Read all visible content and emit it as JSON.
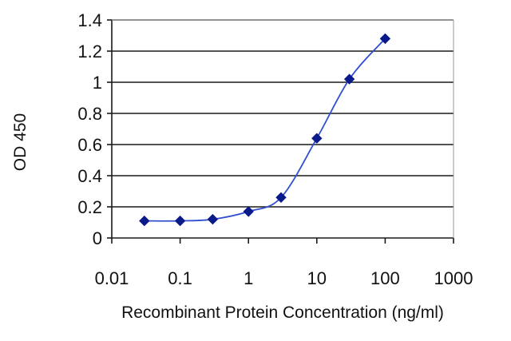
{
  "chart_data": {
    "type": "scatter",
    "title": "",
    "xlabel": "Recombinant Protein Concentration (ng/ml)",
    "ylabel": "OD 450",
    "x_scale": "log",
    "xlim": [
      0.01,
      1000
    ],
    "ylim": [
      0,
      1.4
    ],
    "x_tick_labels": [
      "0.01",
      "0.1",
      "1",
      "10",
      "100",
      "1000"
    ],
    "x_tick_values": [
      0.01,
      0.1,
      1,
      10,
      100,
      1000
    ],
    "y_tick_labels": [
      "0",
      "0.2",
      "0.4",
      "0.6",
      "0.8",
      "1",
      "1.2",
      "1.4"
    ],
    "y_tick_values": [
      0,
      0.2,
      0.4,
      0.6,
      0.8,
      1.0,
      1.2,
      1.4
    ],
    "grid": "horizontal",
    "legend": "none",
    "series": [
      {
        "marker": "diamond",
        "color": "#0a1a8a",
        "line_color": "#2f4fd0",
        "x": [
          0.03,
          0.1,
          0.3,
          1,
          3,
          10,
          30,
          100
        ],
        "y": [
          0.11,
          0.11,
          0.12,
          0.17,
          0.26,
          0.64,
          1.02,
          1.28
        ]
      }
    ]
  }
}
